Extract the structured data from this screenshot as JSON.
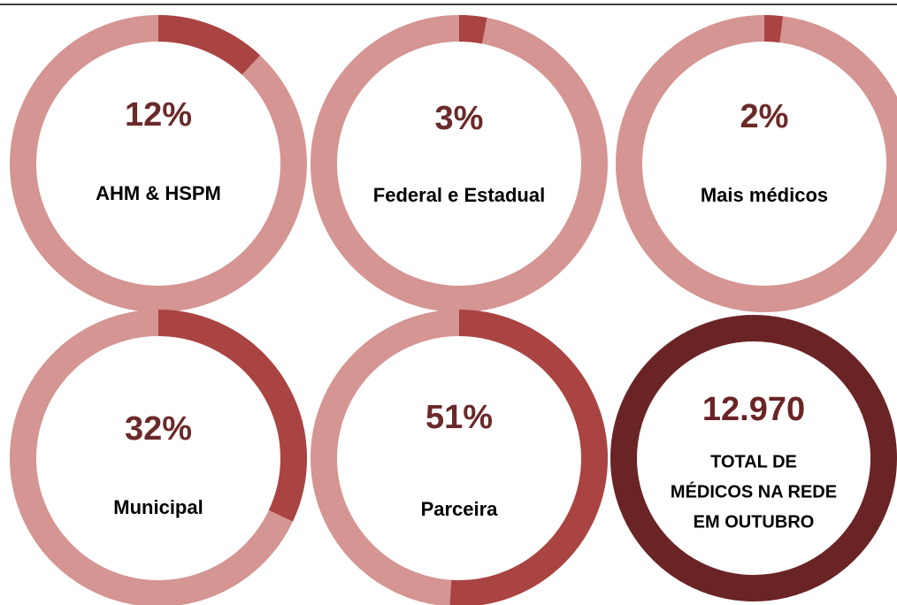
{
  "chart_data": [
    {
      "type": "donut",
      "label": "AHM & HSPM",
      "value": 12,
      "value_label": "12%",
      "ylim": [
        0,
        100
      ],
      "color": "#a94442",
      "track_color": "#d49593"
    },
    {
      "type": "donut",
      "label": "Federal e Estadual",
      "value": 3,
      "value_label": "3%",
      "ylim": [
        0,
        100
      ],
      "color": "#a94442",
      "track_color": "#d49593"
    },
    {
      "type": "donut",
      "label": "Mais médicos",
      "value": 2,
      "value_label": "2%",
      "ylim": [
        0,
        100
      ],
      "color": "#a94442",
      "track_color": "#d49593"
    },
    {
      "type": "donut",
      "label": "Municipal",
      "value": 32,
      "value_label": "32%",
      "ylim": [
        0,
        100
      ],
      "color": "#a94442",
      "track_color": "#d49593"
    },
    {
      "type": "donut",
      "label": "Parceira",
      "value": 51,
      "value_label": "51%",
      "ylim": [
        0,
        100
      ],
      "color": "#a94442",
      "track_color": "#d49593"
    }
  ],
  "total": {
    "value": "12.970",
    "label": [
      "TOTAL DE",
      "MÉDICOS NA REDE",
      "EM OUTUBRO"
    ],
    "color": "#6b2426"
  }
}
